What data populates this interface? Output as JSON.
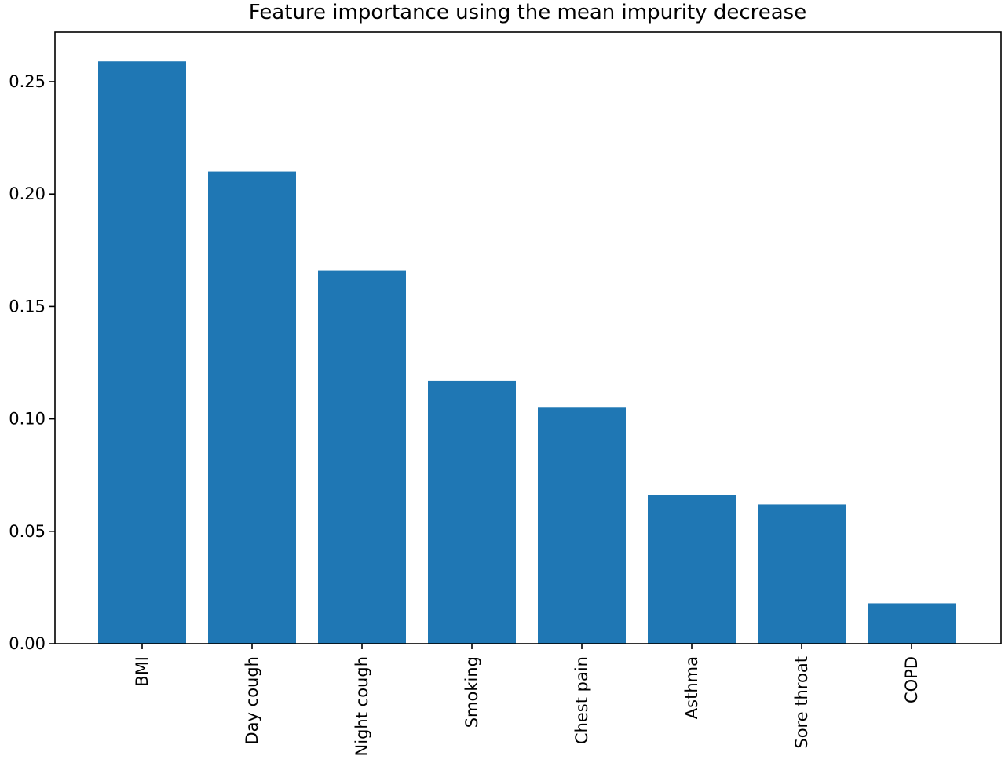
{
  "chart_data": {
    "type": "bar",
    "title": "Feature importance using the mean impurity decrease",
    "xlabel": "",
    "ylabel": "",
    "categories": [
      "BMI",
      "Day cough",
      "Night cough",
      "Smoking",
      "Chest pain",
      "Asthma",
      "Sore throat",
      "COPD"
    ],
    "values": [
      0.259,
      0.21,
      0.166,
      0.117,
      0.105,
      0.066,
      0.062,
      0.018
    ],
    "ylim": [
      0,
      0.272
    ],
    "yticks": [
      0.0,
      0.05,
      0.1,
      0.15,
      0.2,
      0.25
    ],
    "ytick_labels": [
      "0.00",
      "0.05",
      "0.10",
      "0.15",
      "0.20",
      "0.25"
    ],
    "bar_color": "#1f77b4",
    "grid": false,
    "legend": "none"
  }
}
